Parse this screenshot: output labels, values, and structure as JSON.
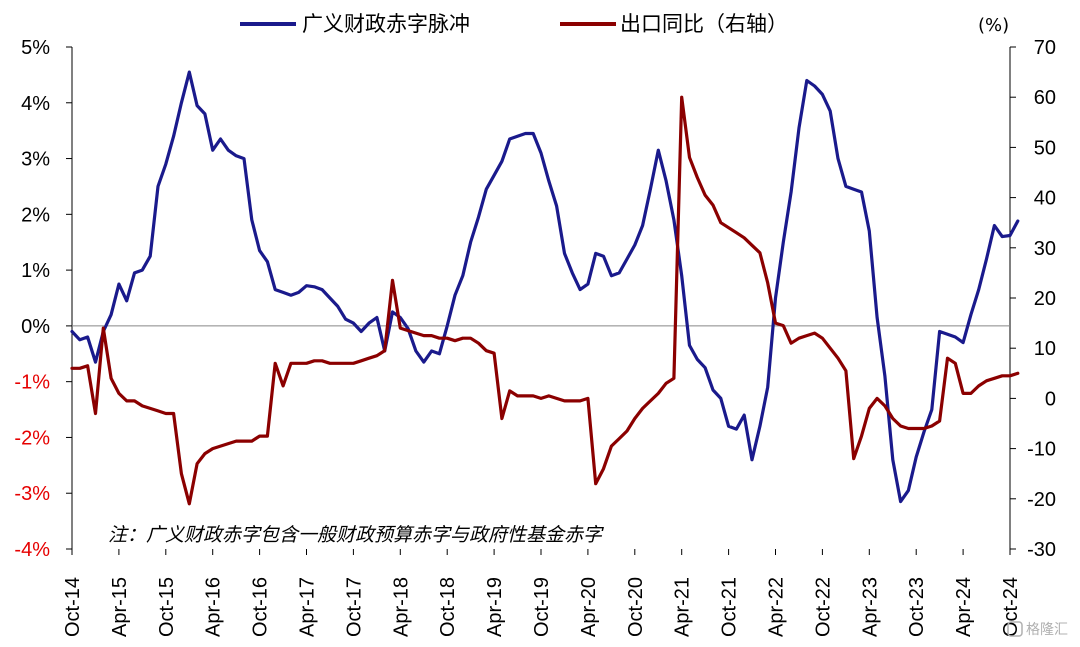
{
  "chart_data": {
    "type": "line",
    "legend": [
      "广义财政赤字脉冲",
      "出口同比（右轴）"
    ],
    "left_axis": {
      "ticks": [
        "5%",
        "4%",
        "3%",
        "2%",
        "1%",
        "0%",
        "-1%",
        "-2%",
        "-3%",
        "-4%"
      ],
      "ylim": [
        -4,
        5
      ]
    },
    "right_axis": {
      "unit": "(%)",
      "ticks": [
        "70",
        "60",
        "50",
        "40",
        "30",
        "20",
        "10",
        "0",
        "-10",
        "-20",
        "-30"
      ],
      "ylim": [
        -30,
        70
      ]
    },
    "x_ticks": [
      "Oct-14",
      "Apr-15",
      "Oct-15",
      "Apr-16",
      "Oct-16",
      "Apr-17",
      "Oct-17",
      "Apr-18",
      "Oct-18",
      "Apr-19",
      "Oct-19",
      "Apr-20",
      "Oct-20",
      "Apr-21",
      "Oct-21",
      "Apr-22",
      "Oct-22",
      "Apr-23",
      "Oct-23",
      "Apr-24",
      "Oct-24"
    ],
    "x_range_months": [
      "Oct-14",
      "Oct-24"
    ],
    "note": "注：广义财政赤字包含一般财政预算赤字与政府性基金赤字",
    "series": [
      {
        "name": "广义财政赤字脉冲",
        "color": "#1a1a8c",
        "axis": "left",
        "values": [
          -0.1,
          -0.25,
          -0.2,
          -0.65,
          -0.1,
          0.2,
          0.75,
          0.45,
          0.95,
          1.0,
          1.25,
          2.5,
          2.9,
          3.4,
          4.0,
          4.55,
          3.95,
          3.8,
          3.15,
          3.35,
          3.15,
          3.05,
          3.0,
          1.9,
          1.35,
          1.15,
          0.65,
          0.6,
          0.55,
          0.6,
          0.72,
          0.7,
          0.65,
          0.5,
          0.35,
          0.12,
          0.05,
          -0.1,
          0.05,
          0.15,
          -0.45,
          0.25,
          0.15,
          -0.05,
          -0.45,
          -0.65,
          -0.45,
          -0.5,
          0.0,
          0.55,
          0.9,
          1.5,
          1.95,
          2.45,
          2.7,
          2.95,
          3.35,
          3.4,
          3.45,
          3.45,
          3.1,
          2.6,
          2.15,
          1.3,
          0.95,
          0.65,
          0.75,
          1.3,
          1.25,
          0.9,
          0.95,
          1.2,
          1.45,
          1.8,
          2.45,
          3.15,
          2.6,
          1.9,
          0.9,
          -0.35,
          -0.6,
          -0.75,
          -1.15,
          -1.3,
          -1.8,
          -1.85,
          -1.6,
          -2.4,
          -1.8,
          -1.1,
          0.5,
          1.5,
          2.4,
          3.55,
          4.4,
          4.3,
          4.15,
          3.85,
          3.0,
          2.5,
          2.45,
          2.4,
          1.7,
          0.15,
          -0.9,
          -2.4,
          -3.15,
          -2.95,
          -2.35,
          -1.9,
          -1.5,
          -0.1,
          -0.15,
          -0.2,
          -0.3,
          0.2,
          0.65,
          1.2,
          1.8,
          1.6,
          1.62,
          1.88
        ]
      },
      {
        "name": "出口同比（右轴）",
        "color": "#8b0000",
        "axis": "right",
        "values": [
          6,
          6,
          6.5,
          -3,
          14,
          4,
          1,
          -0.5,
          -0.5,
          -1.5,
          -2,
          -2.5,
          -3,
          -3,
          -15,
          -21,
          -13,
          -11,
          -10,
          -9.5,
          -9,
          -8.5,
          -8.5,
          -8.5,
          -7.5,
          -7.5,
          7,
          2.5,
          7,
          7,
          7,
          7.5,
          7.5,
          7,
          7,
          7,
          7,
          7.5,
          8,
          8.5,
          9.5,
          23.5,
          14,
          13.5,
          13,
          12.5,
          12.5,
          12,
          12,
          11.5,
          12,
          12,
          11,
          9.5,
          9,
          -4,
          1.5,
          0.5,
          0.5,
          0.5,
          0,
          0.5,
          0,
          -0.5,
          -0.5,
          -0.5,
          0,
          -17,
          -14,
          -9.5,
          -8,
          -6.5,
          -4,
          -2,
          -0.5,
          1,
          3,
          4,
          60,
          48,
          44,
          40.5,
          38.5,
          35,
          34,
          33,
          32,
          30.5,
          29,
          23,
          15,
          14.5,
          11,
          12,
          12.5,
          13,
          12,
          10,
          8,
          5.5,
          -12,
          -7.5,
          -2,
          0,
          -1.5,
          -4,
          -5.5,
          -6,
          -6,
          -6,
          -5.5,
          -4.5,
          8,
          7,
          1,
          1,
          2.5,
          3.5,
          4,
          4.5,
          4.5,
          5
        ]
      }
    ]
  }
}
